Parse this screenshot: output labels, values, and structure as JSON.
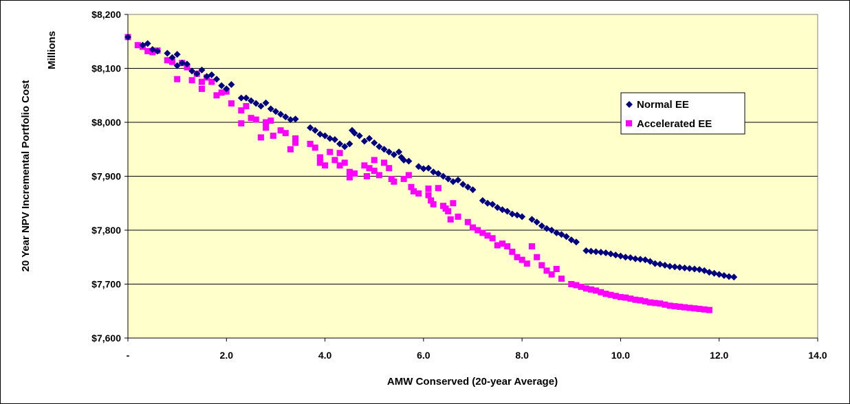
{
  "chart_data": {
    "type": "scatter",
    "title": "",
    "xlabel": "AMW Conserved (20-year Average)",
    "ylabel": "20 Year NPV Incremental Portfolio Cost",
    "ylabel_units": "Millions",
    "xlim": [
      0,
      14
    ],
    "ylim": [
      7600,
      8200
    ],
    "x_ticks": [
      0,
      2,
      4,
      6,
      8,
      10,
      12,
      14
    ],
    "x_tick_labels": [
      "-",
      "2.0",
      "4.0",
      "6.0",
      "8.0",
      "10.0",
      "12.0",
      "14.0"
    ],
    "y_ticks": [
      7600,
      7700,
      7800,
      7900,
      8000,
      8100,
      8200
    ],
    "y_tick_labels": [
      "$7,600",
      "$7,700",
      "$7,800",
      "$7,900",
      "$8,000",
      "$8,100",
      "$8,200"
    ],
    "grid": "horizontal",
    "plot_background": "#FFFFCC",
    "legend_position": "right",
    "series": [
      {
        "name": "Normal EE",
        "color": "#000080",
        "marker": "diamond",
        "points": [
          [
            0.0,
            8158
          ],
          [
            0.3,
            8143
          ],
          [
            0.4,
            8146
          ],
          [
            0.5,
            8135
          ],
          [
            0.6,
            8132
          ],
          [
            0.8,
            8128
          ],
          [
            0.9,
            8120
          ],
          [
            1.0,
            8126
          ],
          [
            1.0,
            8105
          ],
          [
            1.1,
            8110
          ],
          [
            1.2,
            8108
          ],
          [
            1.3,
            8095
          ],
          [
            1.4,
            8090
          ],
          [
            1.5,
            8097
          ],
          [
            1.6,
            8085
          ],
          [
            1.7,
            8088
          ],
          [
            1.8,
            8080
          ],
          [
            1.9,
            8068
          ],
          [
            2.0,
            8062
          ],
          [
            2.1,
            8070
          ],
          [
            2.3,
            8045
          ],
          [
            2.4,
            8045
          ],
          [
            2.5,
            8040
          ],
          [
            2.6,
            8035
          ],
          [
            2.7,
            8030
          ],
          [
            2.8,
            8036
          ],
          [
            2.9,
            8025
          ],
          [
            3.0,
            8020
          ],
          [
            3.1,
            8015
          ],
          [
            3.2,
            8010
          ],
          [
            3.3,
            8005
          ],
          [
            3.4,
            8006
          ],
          [
            3.7,
            7990
          ],
          [
            3.8,
            7985
          ],
          [
            3.9,
            7978
          ],
          [
            4.0,
            7975
          ],
          [
            4.1,
            7970
          ],
          [
            4.2,
            7968
          ],
          [
            4.3,
            7960
          ],
          [
            4.4,
            7955
          ],
          [
            4.5,
            7960
          ],
          [
            4.55,
            7985
          ],
          [
            4.6,
            7980
          ],
          [
            4.7,
            7975
          ],
          [
            4.8,
            7965
          ],
          [
            4.9,
            7970
          ],
          [
            5.0,
            7962
          ],
          [
            5.1,
            7955
          ],
          [
            5.2,
            7950
          ],
          [
            5.3,
            7945
          ],
          [
            5.4,
            7940
          ],
          [
            5.5,
            7945
          ],
          [
            5.55,
            7935
          ],
          [
            5.6,
            7930
          ],
          [
            5.7,
            7928
          ],
          [
            5.9,
            7918
          ],
          [
            6.0,
            7914
          ],
          [
            6.1,
            7915
          ],
          [
            6.2,
            7908
          ],
          [
            6.3,
            7905
          ],
          [
            6.4,
            7900
          ],
          [
            6.5,
            7895
          ],
          [
            6.6,
            7890
          ],
          [
            6.7,
            7893
          ],
          [
            6.8,
            7885
          ],
          [
            6.9,
            7880
          ],
          [
            7.0,
            7875
          ],
          [
            7.2,
            7855
          ],
          [
            7.3,
            7850
          ],
          [
            7.4,
            7848
          ],
          [
            7.5,
            7842
          ],
          [
            7.6,
            7838
          ],
          [
            7.7,
            7835
          ],
          [
            7.8,
            7830
          ],
          [
            7.9,
            7828
          ],
          [
            8.0,
            7825
          ],
          [
            8.2,
            7820
          ],
          [
            8.3,
            7815
          ],
          [
            8.4,
            7808
          ],
          [
            8.5,
            7803
          ],
          [
            8.6,
            7800
          ],
          [
            8.7,
            7795
          ],
          [
            8.8,
            7792
          ],
          [
            8.9,
            7788
          ],
          [
            9.0,
            7782
          ],
          [
            9.1,
            7778
          ],
          [
            9.3,
            7762
          ],
          [
            9.4,
            7761
          ],
          [
            9.5,
            7760
          ],
          [
            9.6,
            7759
          ],
          [
            9.7,
            7758
          ],
          [
            9.8,
            7756
          ],
          [
            9.9,
            7754
          ],
          [
            10.0,
            7752
          ],
          [
            10.1,
            7750
          ],
          [
            10.2,
            7749
          ],
          [
            10.3,
            7747
          ],
          [
            10.4,
            7746
          ],
          [
            10.5,
            7745
          ],
          [
            10.6,
            7742
          ],
          [
            10.7,
            7738
          ],
          [
            10.8,
            7737
          ],
          [
            10.9,
            7735
          ],
          [
            11.0,
            7733
          ],
          [
            11.1,
            7732
          ],
          [
            11.2,
            7731
          ],
          [
            11.3,
            7730
          ],
          [
            11.4,
            7729
          ],
          [
            11.5,
            7728
          ],
          [
            11.6,
            7727
          ],
          [
            11.7,
            7725
          ],
          [
            11.8,
            7722
          ],
          [
            11.9,
            7720
          ],
          [
            12.0,
            7718
          ],
          [
            12.1,
            7716
          ],
          [
            12.2,
            7714
          ],
          [
            12.3,
            7713
          ]
        ]
      },
      {
        "name": "Accelerated EE",
        "color": "#FF00FF",
        "marker": "square",
        "points": [
          [
            0.0,
            8158
          ],
          [
            0.2,
            8143
          ],
          [
            0.3,
            8140
          ],
          [
            0.4,
            8132
          ],
          [
            0.5,
            8130
          ],
          [
            0.6,
            8133
          ],
          [
            0.8,
            8115
          ],
          [
            0.9,
            8112
          ],
          [
            1.0,
            8080
          ],
          [
            1.1,
            8110
          ],
          [
            1.2,
            8102
          ],
          [
            1.3,
            8078
          ],
          [
            1.4,
            8090
          ],
          [
            1.5,
            8075
          ],
          [
            1.5,
            8062
          ],
          [
            1.6,
            8083
          ],
          [
            1.7,
            8075
          ],
          [
            1.8,
            8050
          ],
          [
            1.9,
            8055
          ],
          [
            2.0,
            8057
          ],
          [
            2.1,
            8035
          ],
          [
            2.3,
            8022
          ],
          [
            2.3,
            7998
          ],
          [
            2.4,
            8030
          ],
          [
            2.5,
            8008
          ],
          [
            2.6,
            8005
          ],
          [
            2.7,
            7972
          ],
          [
            2.8,
            8000
          ],
          [
            2.8,
            7990
          ],
          [
            2.9,
            8003
          ],
          [
            2.95,
            7975
          ],
          [
            3.1,
            7985
          ],
          [
            3.2,
            7980
          ],
          [
            3.3,
            7950
          ],
          [
            3.4,
            7970
          ],
          [
            3.4,
            7962
          ],
          [
            3.7,
            7960
          ],
          [
            3.8,
            7953
          ],
          [
            3.9,
            7935
          ],
          [
            3.9,
            7925
          ],
          [
            4.0,
            7920
          ],
          [
            4.1,
            7945
          ],
          [
            4.2,
            7930
          ],
          [
            4.3,
            7920
          ],
          [
            4.3,
            7943
          ],
          [
            4.4,
            7925
          ],
          [
            4.5,
            7908
          ],
          [
            4.5,
            7898
          ],
          [
            4.6,
            7905
          ],
          [
            4.8,
            7920
          ],
          [
            4.85,
            7900
          ],
          [
            4.9,
            7915
          ],
          [
            5.0,
            7930
          ],
          [
            5.0,
            7910
          ],
          [
            5.1,
            7902
          ],
          [
            5.2,
            7925
          ],
          [
            5.3,
            7915
          ],
          [
            5.35,
            7895
          ],
          [
            5.4,
            7890
          ],
          [
            5.6,
            7895
          ],
          [
            5.7,
            7902
          ],
          [
            5.75,
            7880
          ],
          [
            5.8,
            7872
          ],
          [
            5.9,
            7868
          ],
          [
            6.1,
            7877
          ],
          [
            6.1,
            7865
          ],
          [
            6.15,
            7855
          ],
          [
            6.2,
            7848
          ],
          [
            6.3,
            7878
          ],
          [
            6.4,
            7845
          ],
          [
            6.45,
            7840
          ],
          [
            6.5,
            7835
          ],
          [
            6.55,
            7820
          ],
          [
            6.6,
            7850
          ],
          [
            6.7,
            7825
          ],
          [
            6.9,
            7815
          ],
          [
            7.0,
            7805
          ],
          [
            7.1,
            7800
          ],
          [
            7.2,
            7795
          ],
          [
            7.3,
            7790
          ],
          [
            7.4,
            7785
          ],
          [
            7.5,
            7772
          ],
          [
            7.6,
            7775
          ],
          [
            7.7,
            7770
          ],
          [
            7.8,
            7760
          ],
          [
            7.9,
            7750
          ],
          [
            8.0,
            7745
          ],
          [
            8.1,
            7738
          ],
          [
            8.2,
            7770
          ],
          [
            8.3,
            7750
          ],
          [
            8.4,
            7735
          ],
          [
            8.5,
            7725
          ],
          [
            8.6,
            7718
          ],
          [
            8.7,
            7728
          ],
          [
            8.8,
            7710
          ],
          [
            9.0,
            7700
          ],
          [
            9.1,
            7698
          ],
          [
            9.2,
            7695
          ],
          [
            9.3,
            7692
          ],
          [
            9.4,
            7690
          ],
          [
            9.5,
            7688
          ],
          [
            9.6,
            7685
          ],
          [
            9.7,
            7682
          ],
          [
            9.8,
            7680
          ],
          [
            9.9,
            7678
          ],
          [
            10.0,
            7676
          ],
          [
            10.1,
            7675
          ],
          [
            10.2,
            7673
          ],
          [
            10.3,
            7671
          ],
          [
            10.4,
            7670
          ],
          [
            10.5,
            7668
          ],
          [
            10.6,
            7666
          ],
          [
            10.7,
            7665
          ],
          [
            10.8,
            7664
          ],
          [
            10.9,
            7662
          ],
          [
            11.0,
            7660
          ],
          [
            11.1,
            7659
          ],
          [
            11.2,
            7658
          ],
          [
            11.3,
            7657
          ],
          [
            11.4,
            7656
          ],
          [
            11.5,
            7655
          ],
          [
            11.6,
            7654
          ],
          [
            11.7,
            7653
          ],
          [
            11.8,
            7652
          ]
        ]
      }
    ]
  }
}
